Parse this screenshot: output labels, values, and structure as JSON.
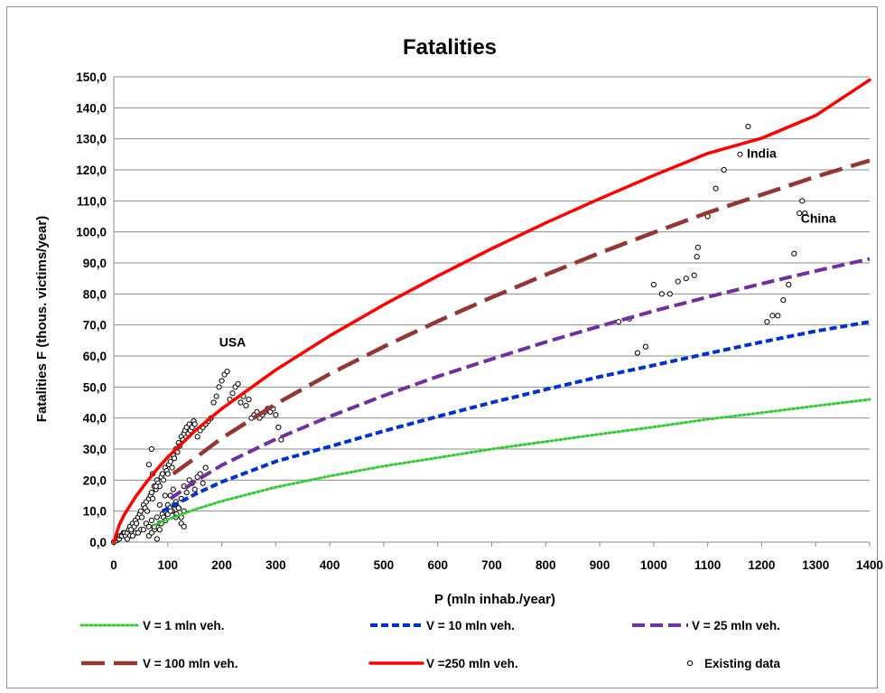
{
  "chart_data": {
    "type": "line",
    "title": "Fatalities",
    "xlabel": "P (mln inhab./year)",
    "ylabel": "Fatalities F (thous. victims/year)",
    "xlim": [
      0,
      1400
    ],
    "ylim": [
      0,
      150
    ],
    "x_ticks": [
      "0",
      "100",
      "200",
      "300",
      "400",
      "500",
      "600",
      "700",
      "800",
      "900",
      "1000",
      "1100",
      "1200",
      "1300",
      "1400"
    ],
    "y_ticks": [
      "0,0",
      "10,0",
      "20,0",
      "30,0",
      "40,0",
      "50,0",
      "60,0",
      "70,0",
      "80,0",
      "90,0",
      "100,0",
      "110,0",
      "120,0",
      "130,0",
      "140,0",
      "150,0"
    ],
    "grid": "horizontal",
    "legend_position": "bottom",
    "series": [
      {
        "name": "V = 1 mln veh.",
        "color": "#33cc33",
        "dash": "dotted",
        "x": [
          75,
          100,
          150,
          200,
          300,
          400,
          500,
          600,
          700,
          800,
          900,
          1000,
          1100,
          1200,
          1300,
          1400
        ],
        "values": [
          5.5,
          7.3,
          10.5,
          13.2,
          17.7,
          21.3,
          24.5,
          27.2,
          30.0,
          32.4,
          34.8,
          37.1,
          39.6,
          41.7,
          43.9,
          46.0
        ]
      },
      {
        "name": "V = 10 mln veh.",
        "color": "#0033cc",
        "dash": "short-dash",
        "x": [
          90,
          100,
          150,
          200,
          300,
          400,
          500,
          600,
          700,
          800,
          900,
          1000,
          1100,
          1200,
          1300,
          1400
        ],
        "values": [
          10.0,
          10.8,
          15.4,
          19.4,
          26.0,
          30.8,
          35.8,
          40.5,
          45.0,
          49.2,
          53.3,
          57.0,
          60.8,
          64.5,
          68.0,
          71.0
        ]
      },
      {
        "name": "V = 25 mln veh.",
        "color": "#7030a0",
        "dash": "dash",
        "x": [
          105,
          150,
          200,
          300,
          400,
          500,
          600,
          700,
          800,
          900,
          1000,
          1100,
          1200,
          1300,
          1400
        ],
        "values": [
          14.0,
          19.5,
          24.8,
          33.2,
          40.5,
          47.2,
          53.4,
          59.0,
          64.5,
          69.6,
          74.5,
          79.0,
          83.3,
          87.4,
          91.3
        ]
      },
      {
        "name": "V = 100 mln veh.",
        "color": "#943634",
        "dash": "long-dash",
        "x": [
          110,
          150,
          200,
          300,
          400,
          500,
          600,
          700,
          800,
          900,
          1000,
          1100,
          1200,
          1300,
          1400
        ],
        "values": [
          22.0,
          27.0,
          33.5,
          44.5,
          54.2,
          63.0,
          71.2,
          78.9,
          86.2,
          93.2,
          99.8,
          106.2,
          112.0,
          117.8,
          123.0
        ]
      },
      {
        "name": "V =250 mln veh.",
        "color": "#ff0000",
        "dash": "solid",
        "x": [
          0,
          10,
          20,
          40,
          60,
          80,
          100,
          150,
          200,
          300,
          400,
          500,
          600,
          700,
          800,
          900,
          1000,
          1100,
          1200,
          1300,
          1400
        ],
        "values": [
          0,
          5.5,
          9.0,
          14.5,
          19.2,
          23.5,
          27.4,
          35.8,
          43.0,
          55.5,
          66.5,
          76.5,
          85.8,
          94.6,
          102.9,
          110.7,
          118.2,
          125.3,
          130.2,
          137.5,
          149.0
        ]
      },
      {
        "name": "Existing data",
        "color": "#000000",
        "marker": "circle",
        "x": [
          0,
          5,
          8,
          10,
          12,
          15,
          18,
          20,
          22,
          25,
          28,
          30,
          32,
          35,
          38,
          40,
          42,
          45,
          48,
          50,
          52,
          55,
          58,
          60,
          62,
          65,
          68,
          70,
          72,
          75,
          78,
          80,
          82,
          85,
          88,
          90,
          92,
          95,
          98,
          100,
          102,
          105,
          108,
          110,
          112,
          115,
          118,
          120,
          122,
          125,
          128,
          130,
          132,
          135,
          138,
          140,
          142,
          145,
          148,
          150,
          155,
          160,
          165,
          170,
          175,
          180,
          185,
          190,
          195,
          200,
          205,
          210,
          215,
          220,
          225,
          230,
          235,
          240,
          245,
          250,
          255,
          260,
          265,
          270,
          275,
          280,
          285,
          290,
          295,
          300,
          305,
          310,
          30,
          40,
          50,
          60,
          65,
          70,
          75,
          80,
          85,
          90,
          95,
          100,
          105,
          110,
          115,
          120,
          125,
          130,
          135,
          140,
          145,
          150,
          155,
          160,
          165,
          170,
          25,
          35,
          45,
          55,
          65,
          70,
          75,
          80,
          85,
          88,
          92,
          96,
          100,
          104,
          108,
          112,
          116,
          120,
          125,
          130,
          65,
          70,
          72,
          78,
          85,
          95,
          105,
          115,
          125,
          130,
          935,
          955,
          970,
          985,
          1000,
          1015,
          1030,
          1045,
          1060,
          1075,
          1080,
          1082,
          1100,
          1115,
          1130,
          1160,
          1175,
          1210,
          1220,
          1230,
          1240,
          1250,
          1260,
          1270,
          1275,
          1280
        ],
        "values": [
          0,
          0.5,
          1,
          1,
          2,
          2,
          3,
          3,
          2,
          3,
          4,
          5,
          4,
          6,
          5,
          7,
          6,
          8,
          9,
          10,
          8,
          12,
          11,
          13,
          10,
          14,
          15,
          16,
          14,
          18,
          17,
          20,
          19,
          18,
          21,
          22,
          20,
          24,
          23,
          22,
          25,
          26,
          24,
          28,
          27,
          30,
          29,
          32,
          31,
          34,
          33,
          35,
          36,
          37,
          35,
          38,
          36,
          37,
          39,
          38,
          34,
          36,
          37,
          38,
          39,
          40,
          45,
          47,
          50,
          52,
          54,
          55,
          46,
          48,
          50,
          51,
          45,
          47,
          44,
          46,
          40,
          41,
          42,
          40,
          41,
          42,
          43,
          42,
          43,
          41,
          37,
          33,
          2,
          3,
          4,
          6,
          5,
          7,
          4,
          8,
          6,
          9,
          10,
          12,
          15,
          17,
          13,
          11,
          14,
          18,
          16,
          20,
          19,
          17,
          21,
          22,
          19,
          24,
          1,
          2,
          3,
          4,
          2,
          3,
          5,
          1,
          4,
          6,
          8,
          7,
          9,
          11,
          10,
          12,
          9,
          11,
          8,
          10,
          25,
          30,
          22,
          18,
          12,
          15,
          10,
          8,
          6,
          5,
          71,
          72,
          61,
          63,
          83,
          80,
          80,
          84,
          85,
          86,
          92,
          95,
          105,
          114,
          120,
          125,
          134,
          71,
          73,
          73,
          78,
          83,
          93,
          106,
          110,
          106
        ]
      }
    ],
    "annotations": [
      {
        "text": "USA",
        "x": 220,
        "y": 63
      },
      {
        "text": "India",
        "x": 1200,
        "y": 124
      },
      {
        "text": "China",
        "x": 1305,
        "y": 103
      }
    ]
  }
}
